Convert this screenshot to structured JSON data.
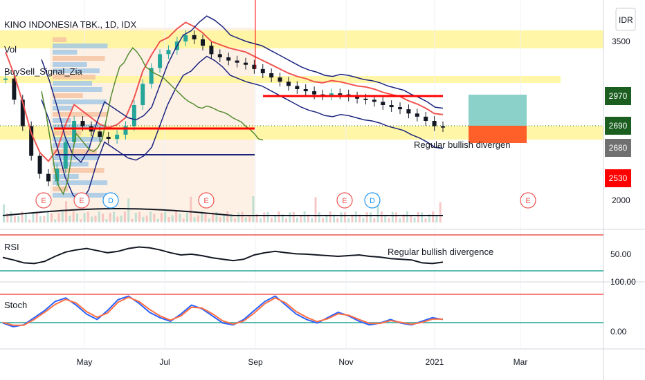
{
  "header": {
    "symbol_title": "KINO INDONESIA TBK., 1D, IDX",
    "vol_label": "Vol",
    "indicator_label": "BuySell_Signal_Zia",
    "currency_button": "IDR"
  },
  "colors": {
    "candle_up": "#26a69a",
    "candle_down": "#131722",
    "yellow_zone": "#fff59d",
    "red_line": "#ef5350",
    "blue_line": "#1a237e",
    "green_line": "#558b2f",
    "rsi_line": "#131722",
    "stoch_k": "#2962ff",
    "stoch_d": "#ff7043",
    "band_green": "#26a69a",
    "band_red": "#ef5350"
  },
  "chart_data": [
    {
      "type": "candlestick",
      "title": "KINO INDONESIA TBK., 1D, IDX",
      "x_ticks": [
        "May",
        "Jul",
        "Sep",
        "Nov",
        "2021",
        "Mar"
      ],
      "y_ticks": [
        3500,
        2000
      ],
      "price_badges": [
        {
          "value": "2970",
          "color": "#1b5e20"
        },
        {
          "value": "2690",
          "color": "#1b5e20"
        },
        {
          "value": "2680",
          "color": "#707070"
        },
        {
          "value": "2530",
          "color": "#ff0000"
        }
      ],
      "annotations": [
        "Regular bullish divergen"
      ],
      "event_markers": [
        {
          "label": "E",
          "month": "Apr"
        },
        {
          "label": "E",
          "month": "Apr"
        },
        {
          "label": "D",
          "month": "May"
        },
        {
          "label": "E",
          "month": "Jul"
        },
        {
          "label": "E",
          "month": "Nov"
        },
        {
          "label": "D",
          "month": "Nov"
        },
        {
          "label": "E",
          "month": "Mar"
        }
      ],
      "close_series": [
        3150,
        2950,
        2700,
        2420,
        2250,
        2180,
        2300,
        2550,
        2750,
        2700,
        2650,
        2600,
        2580,
        2620,
        2700,
        2900,
        3100,
        3250,
        3380,
        3420,
        3500,
        3560,
        3520,
        3460,
        3380,
        3350,
        3320,
        3300,
        3280,
        3240,
        3200,
        3160,
        3120,
        3080,
        3050,
        3030,
        3000,
        2990,
        3010,
        3000,
        2980,
        2960,
        2950,
        2930,
        2900,
        2880,
        2860,
        2820,
        2790,
        2750,
        2700,
        2690
      ]
    },
    {
      "type": "line",
      "title": "RSI",
      "y_ticks": [
        50.0
      ],
      "annotations": [
        "Regular bullish divergence"
      ],
      "values": [
        45,
        38,
        30,
        28,
        34,
        48,
        60,
        66,
        70,
        64,
        58,
        62,
        70,
        74,
        72,
        66,
        58,
        52,
        54,
        50,
        44,
        40,
        36,
        40,
        52,
        58,
        62,
        58,
        55,
        54,
        52,
        50,
        48,
        50,
        52,
        48,
        46,
        42,
        40,
        38,
        30,
        28,
        32
      ]
    },
    {
      "type": "line",
      "title": "Stoch",
      "y_ticks": [
        100.0,
        0.0
      ],
      "series": [
        {
          "values": [
            20,
            10,
            15,
            35,
            55,
            80,
            90,
            70,
            45,
            30,
            55,
            85,
            95,
            75,
            50,
            35,
            25,
            45,
            70,
            60,
            40,
            20,
            15,
            30,
            55,
            80,
            95,
            70,
            45,
            30,
            20,
            35,
            50,
            40,
            25,
            15,
            20,
            30,
            20,
            15,
            25,
            35,
            30
          ]
        },
        {
          "values": [
            22,
            14,
            14,
            30,
            50,
            72,
            86,
            76,
            52,
            36,
            48,
            78,
            92,
            80,
            58,
            40,
            28,
            40,
            64,
            62,
            46,
            26,
            17,
            26,
            48,
            74,
            90,
            76,
            52,
            36,
            24,
            32,
            46,
            42,
            30,
            19,
            19,
            27,
            22,
            17,
            22,
            31,
            31
          ]
        }
      ]
    }
  ]
}
